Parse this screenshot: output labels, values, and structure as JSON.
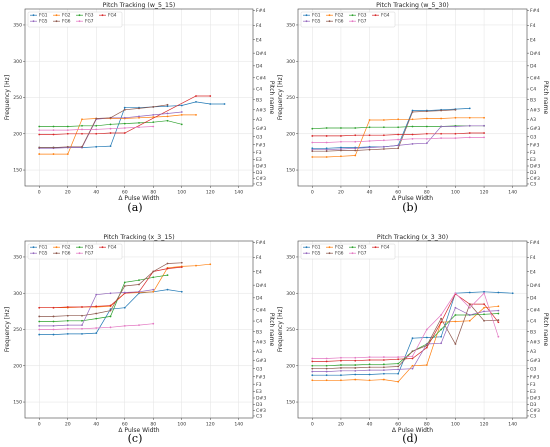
{
  "pitch_ticks": [
    "C3",
    "C#3",
    "D3",
    "D#3",
    "E3",
    "F3",
    "F#3",
    "G3",
    "G#3",
    "A3",
    "A#3",
    "B3",
    "C4",
    "C#4",
    "D4",
    "D#4",
    "E4",
    "F4",
    "F#4"
  ],
  "pitch_hz": [
    130.81,
    138.59,
    146.83,
    155.56,
    164.81,
    174.61,
    185.0,
    196.0,
    207.65,
    220.0,
    233.08,
    246.94,
    261.63,
    277.18,
    293.66,
    311.13,
    329.63,
    349.23,
    369.99
  ],
  "chart_data": [
    {
      "type": "line",
      "panel_label": "(a)",
      "title": "Pitch Tracking (w_5_15)",
      "xlabel": "Δ Pulse Width",
      "ylabel": "Frequency [Hz]",
      "y2label": "Pitch name",
      "xlim": [
        -10,
        150
      ],
      "ylim": [
        128,
        372
      ],
      "xticks": [
        0,
        20,
        40,
        60,
        80,
        100,
        120,
        140
      ],
      "yticks": [
        150,
        200,
        250,
        300,
        350
      ],
      "grid": true,
      "legend": "top-left",
      "series": [
        {
          "name": "FG1",
          "color": "#1f77b4",
          "x": [
            0,
            10,
            20,
            30,
            40,
            50,
            60,
            70,
            80,
            90,
            100,
            110,
            120,
            130
          ],
          "y": [
            181,
            181,
            181,
            181,
            182,
            183,
            236,
            236,
            237,
            238,
            239,
            244,
            241,
            241
          ]
        },
        {
          "name": "FG2",
          "color": "#ff7f0e",
          "x": [
            0,
            10,
            20,
            30,
            40,
            50,
            60,
            70,
            80,
            90,
            100,
            110
          ],
          "y": [
            172,
            172,
            172,
            220,
            221,
            221,
            221,
            222,
            223,
            224,
            226,
            226
          ]
        },
        {
          "name": "FG3",
          "color": "#2ca02c",
          "x": [
            0,
            10,
            20,
            30,
            40,
            50,
            60,
            70,
            80,
            90,
            100
          ],
          "y": [
            210,
            210,
            210,
            211,
            211,
            213,
            214,
            215,
            216,
            218,
            213
          ]
        },
        {
          "name": "FG4",
          "color": "#d62728",
          "x": [
            0,
            10,
            20,
            30,
            40,
            50,
            60,
            110,
            120
          ],
          "y": [
            199,
            199,
            200,
            200,
            200,
            201,
            201,
            252,
            252
          ]
        },
        {
          "name": "FG5",
          "color": "#9467bd",
          "x": [
            0,
            10,
            20,
            30,
            40,
            50,
            60,
            70,
            80,
            90,
            100
          ],
          "y": [
            180,
            180,
            181,
            181,
            220,
            222,
            222,
            224,
            226,
            228,
            230
          ]
        },
        {
          "name": "FG6",
          "color": "#8c564b",
          "x": [
            0,
            10,
            20,
            30,
            40,
            50,
            60,
            70,
            80,
            90
          ],
          "y": [
            181,
            181,
            182,
            182,
            221,
            222,
            233,
            235,
            237,
            240
          ]
        },
        {
          "name": "FG7",
          "color": "#e377c2",
          "x": [
            0,
            10,
            20,
            30,
            40,
            50,
            60,
            70,
            80
          ],
          "y": [
            205,
            205,
            205,
            206,
            206,
            207,
            208,
            209,
            210
          ]
        }
      ]
    },
    {
      "type": "line",
      "panel_label": "(b)",
      "title": "Pitch Tracking (w_5_30)",
      "xlabel": "Δ Pulse Width",
      "ylabel": "Frequency [Hz]",
      "y2label": "Pitch name",
      "xlim": [
        -10,
        150
      ],
      "ylim": [
        128,
        372
      ],
      "xticks": [
        0,
        20,
        40,
        60,
        80,
        100,
        120,
        140
      ],
      "yticks": [
        150,
        200,
        250,
        300,
        350
      ],
      "grid": true,
      "legend": "top-left",
      "series": [
        {
          "name": "FG1",
          "color": "#1f77b4",
          "x": [
            0,
            10,
            20,
            30,
            40,
            50,
            60,
            70,
            80,
            90,
            100,
            110
          ],
          "y": [
            180,
            180,
            181,
            181,
            182,
            182,
            184,
            232,
            232,
            233,
            234,
            235
          ]
        },
        {
          "name": "FG2",
          "color": "#ff7f0e",
          "x": [
            0,
            10,
            20,
            30,
            40,
            50,
            60,
            70,
            80,
            90,
            100,
            110,
            120
          ],
          "y": [
            168,
            168,
            169,
            170,
            219,
            219,
            220,
            220,
            221,
            221,
            222,
            222,
            222
          ]
        },
        {
          "name": "FG3",
          "color": "#2ca02c",
          "x": [
            0,
            10,
            20,
            30,
            40,
            50,
            60,
            70,
            80,
            90,
            100,
            110,
            120
          ],
          "y": [
            207,
            208,
            208,
            208,
            209,
            209,
            209,
            210,
            210,
            210,
            211,
            211,
            211
          ]
        },
        {
          "name": "FG4",
          "color": "#d62728",
          "x": [
            0,
            10,
            20,
            30,
            40,
            50,
            60,
            70,
            80,
            90,
            100,
            110,
            120
          ],
          "y": [
            197,
            197,
            197,
            198,
            198,
            198,
            199,
            199,
            200,
            200,
            200,
            201,
            201
          ]
        },
        {
          "name": "FG5",
          "color": "#9467bd",
          "x": [
            0,
            10,
            20,
            30,
            40,
            50,
            60,
            70,
            80,
            90,
            100,
            110,
            120
          ],
          "y": [
            178,
            178,
            179,
            180,
            181,
            182,
            184,
            186,
            187,
            210,
            210,
            211,
            211
          ]
        },
        {
          "name": "FG6",
          "color": "#8c564b",
          "x": [
            0,
            10,
            20,
            30,
            40,
            50,
            60,
            70,
            80,
            90,
            100
          ],
          "y": [
            176,
            176,
            177,
            177,
            178,
            179,
            180,
            230,
            231,
            232,
            233
          ]
        },
        {
          "name": "FG7",
          "color": "#e377c2",
          "x": [
            0,
            10,
            20,
            30,
            40,
            50,
            60,
            70,
            80,
            90,
            100,
            110,
            120
          ],
          "y": [
            188,
            188,
            189,
            189,
            190,
            191,
            192,
            193,
            193,
            194,
            194,
            195,
            195
          ]
        }
      ]
    },
    {
      "type": "line",
      "panel_label": "(c)",
      "title": "Pitch Tracking (x_3_15)",
      "xlabel": "Δ Pulse Width",
      "ylabel": "Frequency [Hz]",
      "y2label": "Pitch name",
      "xlim": [
        -10,
        150
      ],
      "ylim": [
        128,
        372
      ],
      "xticks": [
        0,
        20,
        40,
        60,
        80,
        100,
        120,
        140
      ],
      "yticks": [
        150,
        200,
        250,
        300,
        350
      ],
      "grid": true,
      "legend": "top-left",
      "series": [
        {
          "name": "FG1",
          "color": "#1f77b4",
          "x": [
            0,
            10,
            20,
            30,
            40,
            50,
            60,
            70,
            80,
            90,
            100
          ],
          "y": [
            243,
            243,
            244,
            244,
            245,
            278,
            280,
            300,
            302,
            305,
            302
          ]
        },
        {
          "name": "FG2",
          "color": "#ff7f0e",
          "x": [
            0,
            10,
            20,
            30,
            40,
            50,
            60,
            70,
            80,
            90,
            100,
            110,
            120
          ],
          "y": [
            280,
            280,
            280,
            281,
            281,
            282,
            300,
            301,
            302,
            335,
            337,
            338,
            340
          ]
        },
        {
          "name": "FG3",
          "color": "#2ca02c",
          "x": [
            0,
            10,
            20,
            30,
            40,
            50,
            60,
            70,
            80,
            90
          ],
          "y": [
            261,
            261,
            262,
            262,
            265,
            268,
            315,
            318,
            322,
            325
          ]
        },
        {
          "name": "FG4",
          "color": "#d62728",
          "x": [
            0,
            10,
            20,
            30,
            40,
            50,
            60,
            70,
            80,
            90,
            100
          ],
          "y": [
            280,
            280,
            281,
            281,
            282,
            283,
            300,
            302,
            330,
            334,
            336
          ]
        },
        {
          "name": "FG5",
          "color": "#9467bd",
          "x": [
            0,
            10,
            20,
            30,
            40,
            50,
            60,
            70,
            80
          ],
          "y": [
            255,
            255,
            256,
            256,
            298,
            300,
            301,
            302,
            305
          ]
        },
        {
          "name": "FG6",
          "color": "#8c564b",
          "x": [
            0,
            10,
            20,
            30,
            40,
            50,
            60,
            70,
            80,
            90,
            100
          ],
          "y": [
            268,
            268,
            269,
            269,
            272,
            276,
            310,
            312,
            330,
            341,
            342
          ]
        },
        {
          "name": "FG7",
          "color": "#e377c2",
          "x": [
            0,
            10,
            20,
            30,
            40,
            50,
            60,
            70,
            80
          ],
          "y": [
            250,
            250,
            251,
            251,
            252,
            253,
            255,
            256,
            258
          ]
        }
      ]
    },
    {
      "type": "line",
      "panel_label": "(d)",
      "title": "Pitch Tracking (x_3_30)",
      "xlabel": "Δ Pulse Width",
      "ylabel": "Frequency [Hz]",
      "y2label": "Pitch name",
      "xlim": [
        -10,
        150
      ],
      "ylim": [
        128,
        372
      ],
      "xticks": [
        0,
        20,
        40,
        60,
        80,
        100,
        120,
        140
      ],
      "yticks": [
        150,
        200,
        250,
        300,
        350
      ],
      "grid": true,
      "legend": "top-left",
      "series": [
        {
          "name": "FG1",
          "color": "#1f77b4",
          "x": [
            0,
            10,
            20,
            30,
            40,
            50,
            60,
            70,
            80,
            90,
            100,
            110,
            120,
            130,
            140
          ],
          "y": [
            187,
            187,
            187,
            188,
            188,
            189,
            189,
            238,
            239,
            240,
            300,
            301,
            302,
            301,
            300
          ]
        },
        {
          "name": "FG2",
          "color": "#ff7f0e",
          "x": [
            0,
            10,
            20,
            30,
            40,
            50,
            60,
            70,
            80,
            90,
            100,
            110,
            120,
            130
          ],
          "y": [
            180,
            180,
            180,
            181,
            180,
            181,
            178,
            200,
            201,
            260,
            261,
            262,
            280,
            282
          ]
        },
        {
          "name": "FG3",
          "color": "#2ca02c",
          "x": [
            0,
            10,
            20,
            30,
            40,
            50,
            60,
            70,
            80,
            90,
            100,
            110,
            120,
            130
          ],
          "y": [
            200,
            200,
            201,
            201,
            202,
            202,
            203,
            220,
            230,
            250,
            270,
            270,
            271,
            272
          ]
        },
        {
          "name": "FG4",
          "color": "#d62728",
          "x": [
            0,
            10,
            20,
            30,
            40,
            50,
            60,
            70,
            80,
            90,
            100,
            110,
            120,
            130
          ],
          "y": [
            206,
            206,
            207,
            207,
            208,
            208,
            209,
            210,
            225,
            260,
            299,
            285,
            285,
            260
          ]
        },
        {
          "name": "FG5",
          "color": "#9467bd",
          "x": [
            0,
            10,
            20,
            30,
            40,
            50,
            60,
            70,
            80,
            90,
            100,
            110,
            120,
            130
          ],
          "y": [
            192,
            192,
            193,
            193,
            194,
            194,
            195,
            196,
            230,
            231,
            280,
            270,
            275,
            276
          ]
        },
        {
          "name": "FG6",
          "color": "#8c564b",
          "x": [
            0,
            10,
            20,
            30,
            40,
            50,
            60,
            70,
            80,
            90,
            100,
            110,
            120,
            130
          ],
          "y": [
            196,
            196,
            197,
            197,
            198,
            198,
            199,
            220,
            228,
            265,
            230,
            285,
            262,
            263
          ]
        },
        {
          "name": "FG7",
          "color": "#e377c2",
          "x": [
            0,
            10,
            20,
            30,
            40,
            50,
            60,
            70,
            80,
            90,
            100,
            110,
            120,
            130
          ],
          "y": [
            210,
            210,
            211,
            211,
            212,
            212,
            212,
            213,
            250,
            270,
            300,
            280,
            300,
            240
          ]
        }
      ]
    }
  ]
}
